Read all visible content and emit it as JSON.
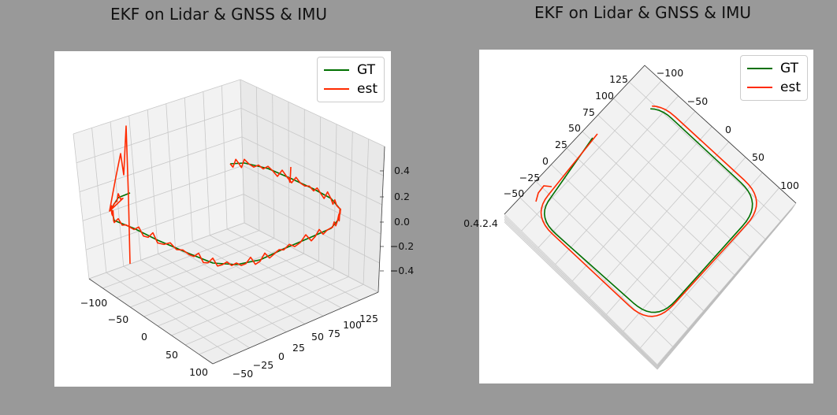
{
  "chart_data": [
    {
      "type": "line3d",
      "title": "EKF on Lidar & GNSS & IMU",
      "view": "perspective",
      "x_ticks": [
        "−100",
        "−50",
        "0",
        "50",
        "100"
      ],
      "y_ticks": [
        "−50",
        "−25",
        "0",
        "25",
        "50",
        "75",
        "100",
        "125"
      ],
      "z_ticks": [
        "0.4",
        "0.2",
        "0.0",
        "−0.2",
        "−0.4"
      ],
      "grid": true,
      "legend_position": "top-right",
      "series": [
        {
          "name": "GT",
          "color": "#007000"
        },
        {
          "name": "est",
          "color": "#ff2a00"
        }
      ]
    },
    {
      "type": "line3d",
      "title": "EKF on Lidar & GNSS & IMU",
      "view": "top-down",
      "x_ticks": [
        "−50",
        "−25",
        "0",
        "25",
        "50",
        "75",
        "100",
        "125"
      ],
      "y_ticks": [
        "−100",
        "−50",
        "0",
        "50",
        "100"
      ],
      "z_tick_label": "0.4.2.4",
      "grid": true,
      "legend_position": "top-right",
      "series": [
        {
          "name": "GT",
          "color": "#007000"
        },
        {
          "name": "est",
          "color": "#ff2a00"
        }
      ]
    }
  ]
}
